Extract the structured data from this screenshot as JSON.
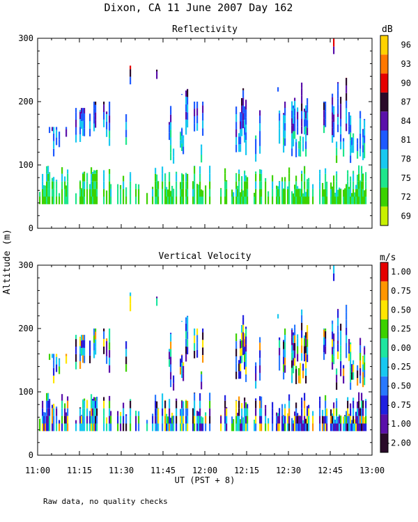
{
  "chart_data": {
    "type": "heatmap",
    "title": "Dixon, CA 11 June 2007  Day 162",
    "ylabel": "Altitude (m)",
    "xlabel": "UT  (PST + 8)",
    "footnote": "Raw data, no quality checks",
    "x_ticks": [
      "11:00",
      "11:15",
      "11:30",
      "11:45",
      "12:00",
      "12:15",
      "12:30",
      "12:45",
      "13:00"
    ],
    "x_range_minutes_after_1100": [
      0,
      120
    ],
    "panels": [
      {
        "title": "Reflectivity",
        "unit": "dB",
        "ylim": [
          0,
          300
        ],
        "y_ticks": [
          "0",
          "100",
          "200",
          "300"
        ],
        "colorbar_labels": [
          "69",
          "72",
          "75",
          "78",
          "81",
          "84",
          "87",
          "90",
          "93",
          "96"
        ],
        "colorbar_range": [
          67.5,
          99
        ],
        "colors": [
          "#c8f000",
          "#3cd200",
          "#1ee68c",
          "#18c8f0",
          "#1e5aff",
          "#5a10aa",
          "#2a0a2a",
          "#e60000",
          "#ff7800",
          "#ffd200"
        ]
      },
      {
        "title": "Vertical Velocity",
        "unit": "m/s",
        "ylim": [
          0,
          300
        ],
        "y_ticks": [
          "0",
          "100",
          "200",
          "300"
        ],
        "colorbar_labels": [
          "-2.00",
          "-1.00",
          "-0.75",
          "-0.50",
          "-0.25",
          "0.00",
          "0.25",
          "0.50",
          "0.75",
          "1.00"
        ],
        "colorbar_range": [
          -1.25,
          1.25
        ],
        "colors": [
          "#2a0a2a",
          "#5a10aa",
          "#2020e0",
          "#2878ff",
          "#18c8f0",
          "#1ee6a0",
          "#3cd200",
          "#ffe600",
          "#ff9600",
          "#e60000"
        ]
      }
    ]
  }
}
